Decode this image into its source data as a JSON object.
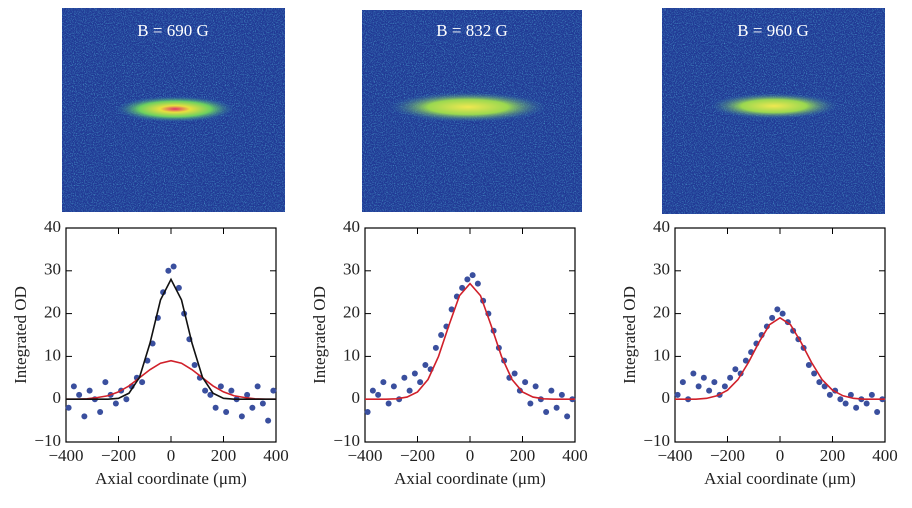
{
  "chart_data": [
    {
      "type": "scatter",
      "image_label": "B = 690 G",
      "xlabel": "Axial coordinate (μm)",
      "ylabel": "Integrated OD",
      "xlim": [
        -400,
        400
      ],
      "ylim": [
        -10,
        40
      ],
      "xticks": [
        {
          "value": -400,
          "label": "−400"
        },
        {
          "value": -200,
          "label": "−200"
        },
        0,
        200,
        400
      ],
      "yticks": [
        {
          "value": -10,
          "label": "−10"
        },
        0,
        10,
        20,
        30,
        40
      ],
      "series": [
        {
          "type": "scatter",
          "color": "#3a4f9e",
          "x": [
            -390,
            -370,
            -350,
            -330,
            -310,
            -290,
            -270,
            -250,
            -230,
            -210,
            -190,
            -170,
            -150,
            -130,
            -110,
            -90,
            -70,
            -50,
            -30,
            -10,
            10,
            30,
            50,
            70,
            90,
            110,
            130,
            150,
            170,
            190,
            210,
            230,
            250,
            270,
            290,
            310,
            330,
            350,
            370,
            390
          ],
          "values": [
            -2,
            3,
            1,
            -4,
            2,
            0,
            -3,
            4,
            1,
            -1,
            2,
            0,
            3,
            5,
            4,
            9,
            13,
            19,
            25,
            30,
            31,
            26,
            20,
            14,
            8,
            5,
            2,
            1,
            -2,
            3,
            -3,
            2,
            0,
            -4,
            1,
            -2,
            3,
            -1,
            -5,
            2
          ]
        },
        {
          "type": "line",
          "color": "#d0202a",
          "x": [
            -400,
            -360,
            -320,
            -280,
            -240,
            -200,
            -160,
            -120,
            -80,
            -40,
            0,
            40,
            80,
            120,
            160,
            200,
            240,
            280,
            320,
            360,
            400
          ],
          "values": [
            0,
            0,
            0.1,
            0.4,
            0.8,
            1.7,
            3.1,
            5,
            6.9,
            8.4,
            9,
            8.4,
            6.9,
            5,
            3.1,
            1.7,
            0.8,
            0.4,
            0.1,
            0,
            0
          ]
        },
        {
          "type": "line",
          "color": "#111111",
          "x": [
            -400,
            -360,
            -320,
            -280,
            -240,
            -200,
            -160,
            -120,
            -80,
            -40,
            0,
            40,
            80,
            120,
            160,
            200,
            240,
            280,
            320,
            360,
            400
          ],
          "values": [
            0,
            0,
            0,
            0,
            0,
            0.2,
            1.4,
            5.1,
            13.1,
            23.2,
            28,
            23.2,
            13.1,
            5.1,
            1.4,
            0.2,
            0,
            0,
            0,
            0,
            0
          ]
        }
      ]
    },
    {
      "type": "scatter",
      "image_label": "B = 832 G",
      "xlabel": "Axial coordinate (μm)",
      "ylabel": "Integrated OD",
      "xlim": [
        -400,
        400
      ],
      "ylim": [
        -10,
        40
      ],
      "xticks": [
        {
          "value": -400,
          "label": "−400"
        },
        {
          "value": -200,
          "label": "−200"
        },
        0,
        200,
        400
      ],
      "yticks": [
        {
          "value": -10,
          "label": "−10"
        },
        0,
        10,
        20,
        30,
        40
      ],
      "series": [
        {
          "type": "scatter",
          "color": "#3a4f9e",
          "x": [
            -390,
            -370,
            -350,
            -330,
            -310,
            -290,
            -270,
            -250,
            -230,
            -210,
            -190,
            -170,
            -150,
            -130,
            -110,
            -90,
            -70,
            -50,
            -30,
            -10,
            10,
            30,
            50,
            70,
            90,
            110,
            130,
            150,
            170,
            190,
            210,
            230,
            250,
            270,
            290,
            310,
            330,
            350,
            370,
            390
          ],
          "values": [
            -3,
            2,
            1,
            4,
            -1,
            3,
            0,
            5,
            2,
            6,
            4,
            8,
            7,
            12,
            15,
            17,
            21,
            24,
            26,
            28,
            29,
            27,
            23,
            20,
            16,
            12,
            9,
            5,
            6,
            2,
            4,
            -1,
            3,
            0,
            -3,
            2,
            -2,
            1,
            -4,
            0
          ]
        },
        {
          "type": "line",
          "color": "#d0202a",
          "x": [
            -400,
            -360,
            -320,
            -280,
            -240,
            -200,
            -160,
            -120,
            -80,
            -40,
            0,
            40,
            80,
            120,
            160,
            200,
            240,
            280,
            320,
            360,
            400
          ],
          "values": [
            0,
            0,
            0,
            0.1,
            0.5,
            1.7,
            4.6,
            10,
            17.3,
            24.2,
            27,
            24.2,
            17.3,
            10,
            4.6,
            1.7,
            0.5,
            0.1,
            0,
            0,
            0
          ]
        }
      ]
    },
    {
      "type": "scatter",
      "image_label": "B = 960 G",
      "xlabel": "Axial coordinate (μm)",
      "ylabel": "Integrated OD",
      "xlim": [
        -400,
        400
      ],
      "ylim": [
        -10,
        40
      ],
      "xticks": [
        {
          "value": -400,
          "label": "−400"
        },
        {
          "value": -200,
          "label": "−200"
        },
        0,
        200,
        400
      ],
      "yticks": [
        {
          "value": -10,
          "label": "−10"
        },
        0,
        10,
        20,
        30,
        40
      ],
      "series": [
        {
          "type": "scatter",
          "color": "#3a4f9e",
          "x": [
            -390,
            -370,
            -350,
            -330,
            -310,
            -290,
            -270,
            -250,
            -230,
            -210,
            -190,
            -170,
            -150,
            -130,
            -110,
            -90,
            -70,
            -50,
            -30,
            -10,
            10,
            30,
            50,
            70,
            90,
            110,
            130,
            150,
            170,
            190,
            210,
            230,
            250,
            270,
            290,
            310,
            330,
            350,
            370,
            390
          ],
          "values": [
            1,
            4,
            0,
            6,
            3,
            5,
            2,
            4,
            1,
            3,
            5,
            7,
            6,
            9,
            11,
            13,
            15,
            17,
            19,
            21,
            20,
            18,
            16,
            14,
            12,
            8,
            6,
            4,
            3,
            1,
            2,
            0,
            -1,
            1,
            -2,
            0,
            -1,
            1,
            -3,
            0
          ]
        },
        {
          "type": "line",
          "color": "#d0202a",
          "x": [
            -400,
            -360,
            -320,
            -280,
            -240,
            -200,
            -160,
            -120,
            -80,
            -40,
            0,
            40,
            80,
            120,
            160,
            200,
            240,
            280,
            320,
            360,
            400
          ],
          "values": [
            0,
            0,
            0,
            0.2,
            0.8,
            2.1,
            4.6,
            8.6,
            13.3,
            17.4,
            19,
            17.4,
            13.3,
            8.6,
            4.6,
            2.1,
            0.8,
            0.2,
            0,
            0,
            0
          ]
        }
      ]
    }
  ]
}
